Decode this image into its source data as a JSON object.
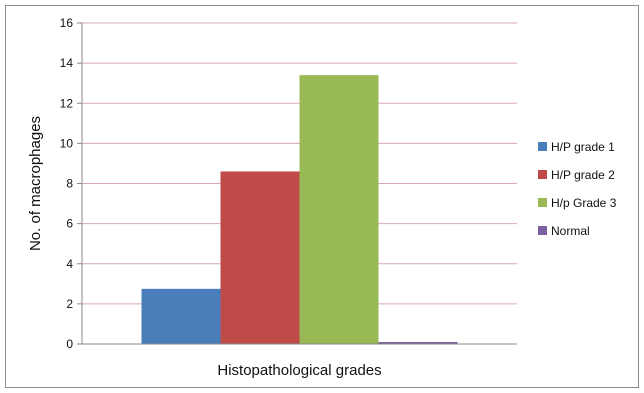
{
  "chart_data": {
    "type": "bar",
    "categories": [
      "Histopathological grades"
    ],
    "series": [
      {
        "name": "H/P grade 1",
        "values": [
          2.75
        ],
        "color": "#4a7ebb"
      },
      {
        "name": "H/P grade 2",
        "values": [
          8.6
        ],
        "color": "#be4b48"
      },
      {
        "name": "H/p Grade 3",
        "values": [
          13.4
        ],
        "color": "#98b954"
      },
      {
        "name": "Normal",
        "values": [
          0.1
        ],
        "color": "#7d60a0"
      }
    ],
    "title": "",
    "xlabel": "Histopathological grades",
    "ylabel": "No. of macrophages",
    "ylim": [
      0,
      16
    ],
    "yticks": [
      0,
      2,
      4,
      6,
      8,
      10,
      12,
      14,
      16
    ],
    "grid": true,
    "legend": "right"
  }
}
